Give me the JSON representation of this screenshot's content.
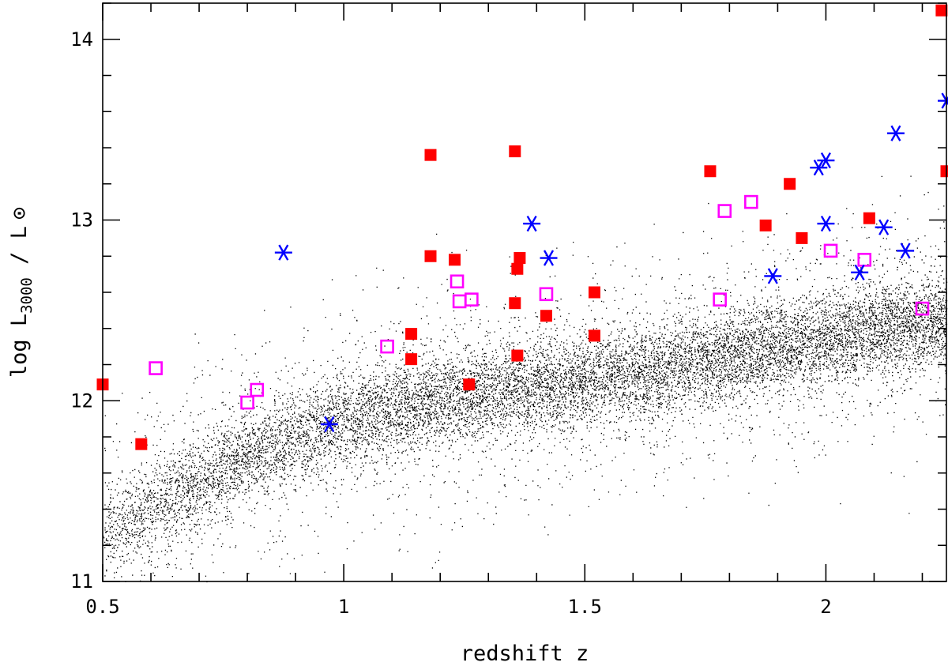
{
  "chart_data": {
    "type": "scatter",
    "title": "",
    "xlabel": "redshift z",
    "ylabel": {
      "prefix": "log L",
      "subscript": "3000",
      "suffix": " / L",
      "sun_symbol": "⊙"
    },
    "xlim": [
      0.5,
      2.25
    ],
    "ylim": [
      11,
      14.2
    ],
    "x_ticks": [
      {
        "value": 0.5,
        "label": "0.5"
      },
      {
        "value": 1,
        "label": "1"
      },
      {
        "value": 1.5,
        "label": "1.5"
      },
      {
        "value": 2,
        "label": "2"
      }
    ],
    "y_ticks": [
      {
        "value": 11,
        "label": "11"
      },
      {
        "value": 12,
        "label": "12"
      },
      {
        "value": 13,
        "label": "13"
      },
      {
        "value": 14,
        "label": "14"
      }
    ],
    "grid": false,
    "legend": "none",
    "background_population": {
      "marker": "dot",
      "color": "#000000",
      "description_ridge": [
        [
          0.5,
          11.25
        ],
        [
          0.8,
          11.7
        ],
        [
          1.0,
          11.9
        ],
        [
          1.3,
          12.05
        ],
        [
          1.6,
          12.15
        ],
        [
          1.8,
          12.25
        ],
        [
          2.0,
          12.35
        ],
        [
          2.25,
          12.45
        ]
      ]
    },
    "series": [
      {
        "marker": "filled-square",
        "color": "#ff0000",
        "points": [
          [
            0.5,
            12.09
          ],
          [
            0.58,
            11.76
          ],
          [
            1.14,
            12.37
          ],
          [
            1.14,
            12.23
          ],
          [
            1.18,
            13.36
          ],
          [
            1.18,
            12.8
          ],
          [
            1.23,
            12.78
          ],
          [
            1.26,
            12.09
          ],
          [
            1.355,
            13.38
          ],
          [
            1.355,
            12.54
          ],
          [
            1.36,
            12.73
          ],
          [
            1.365,
            12.79
          ],
          [
            1.36,
            12.25
          ],
          [
            1.42,
            12.47
          ],
          [
            1.52,
            12.6
          ],
          [
            1.52,
            12.36
          ],
          [
            1.76,
            13.27
          ],
          [
            1.875,
            12.97
          ],
          [
            1.925,
            13.2
          ],
          [
            1.95,
            12.9
          ],
          [
            2.09,
            13.01
          ],
          [
            2.24,
            14.16
          ],
          [
            2.25,
            13.27
          ]
        ]
      },
      {
        "marker": "open-square",
        "color": "#ff00ff",
        "points": [
          [
            0.61,
            12.18
          ],
          [
            0.8,
            11.99
          ],
          [
            0.82,
            12.06
          ],
          [
            1.09,
            12.3
          ],
          [
            1.235,
            12.66
          ],
          [
            1.24,
            12.55
          ],
          [
            1.265,
            12.56
          ],
          [
            1.42,
            12.59
          ],
          [
            1.78,
            12.56
          ],
          [
            1.79,
            13.05
          ],
          [
            1.845,
            13.1
          ],
          [
            2.01,
            12.83
          ],
          [
            2.08,
            12.78
          ],
          [
            2.2,
            12.51
          ]
        ]
      },
      {
        "marker": "asterisk",
        "color": "#0000ff",
        "points": [
          [
            0.875,
            12.82
          ],
          [
            0.97,
            11.87
          ],
          [
            1.39,
            12.98
          ],
          [
            1.425,
            12.79
          ],
          [
            1.89,
            12.69
          ],
          [
            1.985,
            13.29
          ],
          [
            2.0,
            13.33
          ],
          [
            2.0,
            12.98
          ],
          [
            2.07,
            12.71
          ],
          [
            2.12,
            12.96
          ],
          [
            2.145,
            13.48
          ],
          [
            2.165,
            12.83
          ],
          [
            2.25,
            13.66
          ]
        ]
      }
    ]
  }
}
